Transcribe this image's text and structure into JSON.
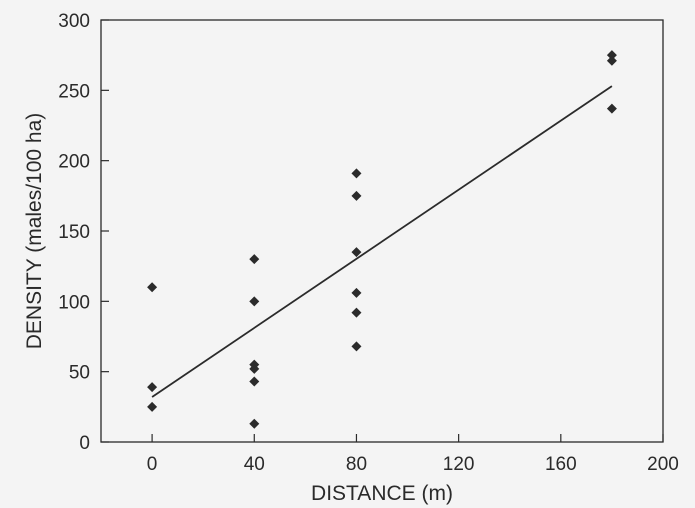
{
  "chart_data": {
    "type": "scatter",
    "title": "",
    "xlabel": "DISTANCE (m)",
    "ylabel": "DENSITY (males/100 ha)",
    "xlim": [
      -20,
      200
    ],
    "ylim": [
      0,
      300
    ],
    "x_ticks": [
      0,
      40,
      80,
      120,
      160,
      200
    ],
    "y_ticks": [
      0,
      50,
      100,
      150,
      200,
      250,
      300
    ],
    "grid": false,
    "legend": "none",
    "marker": "diamond",
    "marker_color": "#2b2b2b",
    "series": [
      {
        "points": [
          {
            "x": 0,
            "y": 110
          },
          {
            "x": 0,
            "y": 39
          },
          {
            "x": 0,
            "y": 25
          },
          {
            "x": 40,
            "y": 130
          },
          {
            "x": 40,
            "y": 100
          },
          {
            "x": 40,
            "y": 55
          },
          {
            "x": 40,
            "y": 52
          },
          {
            "x": 40,
            "y": 43
          },
          {
            "x": 40,
            "y": 13
          },
          {
            "x": 80,
            "y": 191
          },
          {
            "x": 80,
            "y": 175
          },
          {
            "x": 80,
            "y": 135
          },
          {
            "x": 80,
            "y": 106
          },
          {
            "x": 80,
            "y": 92
          },
          {
            "x": 80,
            "y": 68
          },
          {
            "x": 180,
            "y": 275
          },
          {
            "x": 180,
            "y": 271
          },
          {
            "x": 180,
            "y": 237
          }
        ]
      }
    ],
    "trendline": {
      "type": "linear",
      "x": [
        0,
        180
      ],
      "y": [
        32,
        253
      ],
      "color": "#2b2b2b"
    }
  }
}
